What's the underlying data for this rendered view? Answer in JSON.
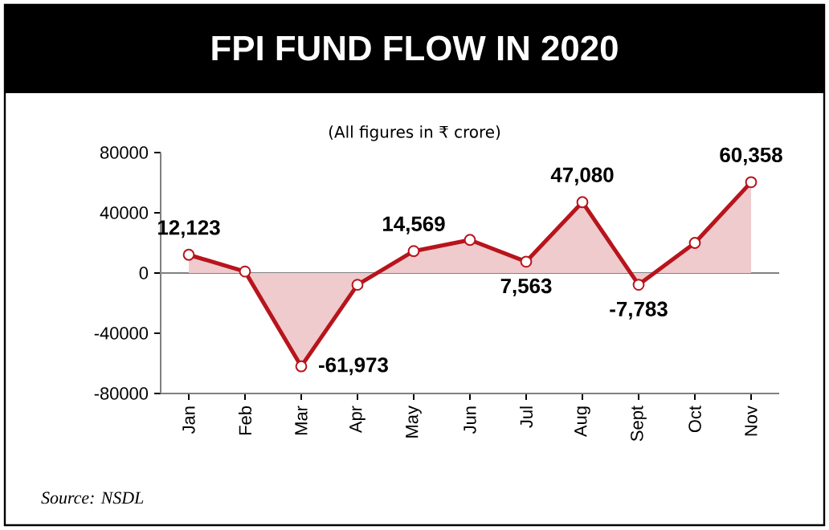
{
  "chart_data": {
    "type": "area",
    "title": "FPI FUND FLOW IN 2020",
    "subtitle": "(All figures in ₹ crore)",
    "categories": [
      "Jan",
      "Feb",
      "Mar",
      "Apr",
      "May",
      "Jun",
      "Jul",
      "Aug",
      "Sept",
      "Oct",
      "Nov"
    ],
    "series": [
      {
        "color": "#b8141c",
        "values": [
          12123,
          1000,
          -61973,
          -7800,
          14569,
          22000,
          7563,
          47080,
          -7783,
          20000,
          60358
        ],
        "value_labels": [
          "12,123",
          null,
          "-61,973",
          null,
          "14,569",
          null,
          "7,563",
          "47,080",
          "-7,783",
          null,
          "60,358"
        ]
      }
    ],
    "ylim": [
      -80000,
      80000
    ],
    "yticks": [
      -80000,
      -40000,
      0,
      40000,
      80000
    ],
    "ref_lines": [
      {
        "axis": "y",
        "value": 0
      }
    ],
    "marker": "circle",
    "grid": false,
    "annotations": [
      "Source: NSDL"
    ]
  }
}
